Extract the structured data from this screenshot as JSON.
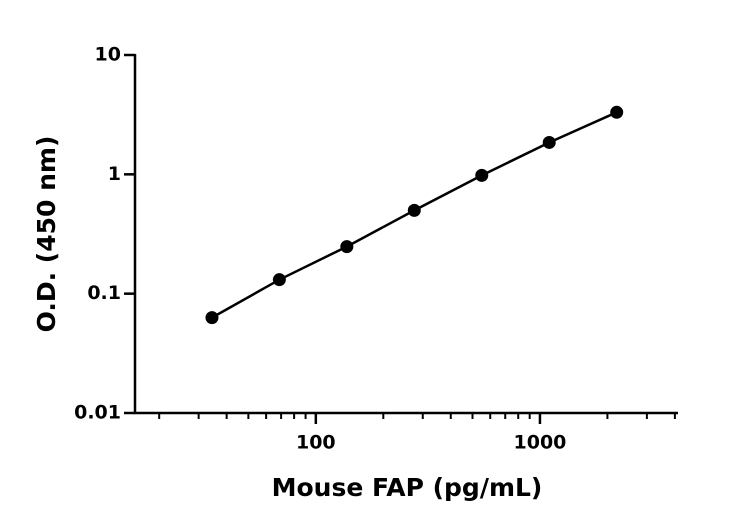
{
  "chart_data": {
    "type": "line",
    "x_label": "Mouse FAP (pg/mL)",
    "y_label": "O.D. (450 nm)",
    "xscale": "log",
    "yscale": "log",
    "x": [
      34.4,
      68.75,
      137.5,
      275,
      550,
      1100,
      2200
    ],
    "series": [
      {
        "color": "#000000",
        "values": [
          0.063,
          0.131,
          0.248,
          0.499,
          0.98,
          1.85,
          3.31
        ]
      }
    ],
    "xlim": [
      15.6,
      4130
    ],
    "ylim": [
      0.01,
      10
    ],
    "xticks": [
      100,
      1000
    ],
    "yticks": [
      0.01,
      0.1,
      1,
      10
    ]
  }
}
